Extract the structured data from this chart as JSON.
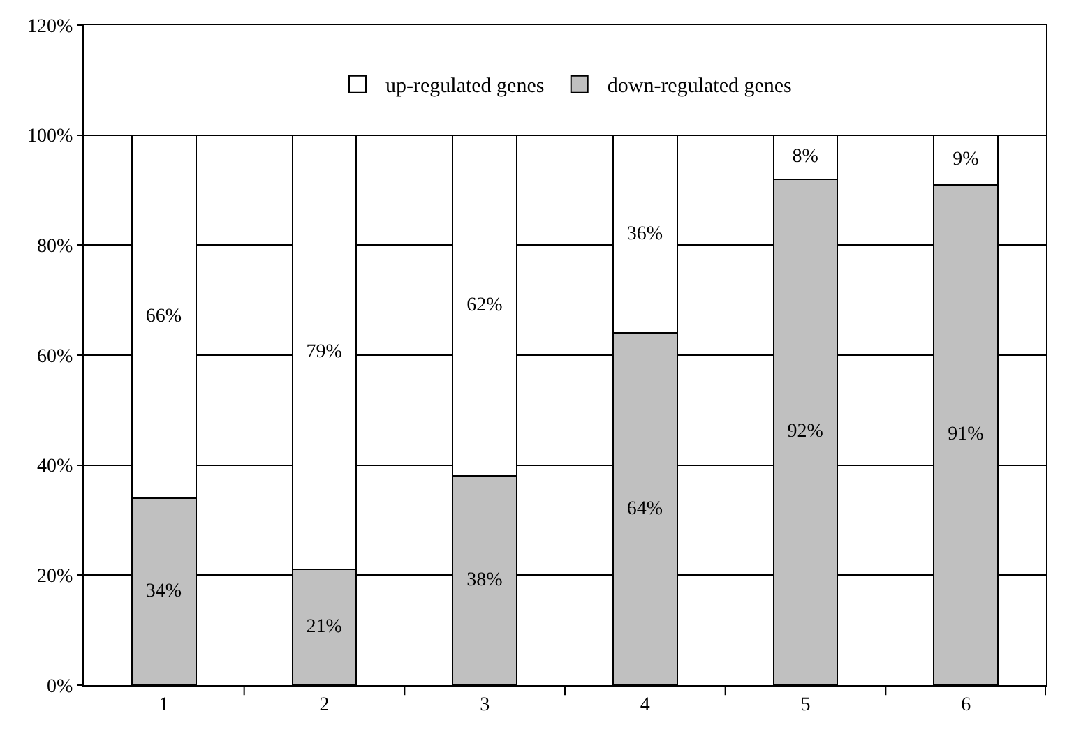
{
  "chart_data": {
    "type": "bar",
    "stacked": true,
    "categories": [
      "1",
      "2",
      "3",
      "4",
      "5",
      "6"
    ],
    "series": [
      {
        "name": "down-regulated genes",
        "color": "#c0c0c0",
        "values": [
          34,
          21,
          38,
          64,
          92,
          91
        ],
        "value_labels": [
          "34%",
          "21%",
          "38%",
          "64%",
          "92%",
          "91%"
        ]
      },
      {
        "name": "up-regulated genes",
        "color": "#ffffff",
        "values": [
          66,
          79,
          62,
          36,
          8,
          9
        ],
        "value_labels": [
          "66%",
          "79%",
          "62%",
          "36%",
          "8%",
          "9%"
        ]
      }
    ],
    "ylim": [
      0,
      120
    ],
    "yticks": [
      {
        "value": 0,
        "label": "0%"
      },
      {
        "value": 20,
        "label": "20%"
      },
      {
        "value": 40,
        "label": "40%"
      },
      {
        "value": 60,
        "label": "60%"
      },
      {
        "value": 80,
        "label": "80%"
      },
      {
        "value": 100,
        "label": "100%"
      },
      {
        "value": 120,
        "label": "120%"
      }
    ],
    "grid": "y",
    "legend": "top"
  }
}
